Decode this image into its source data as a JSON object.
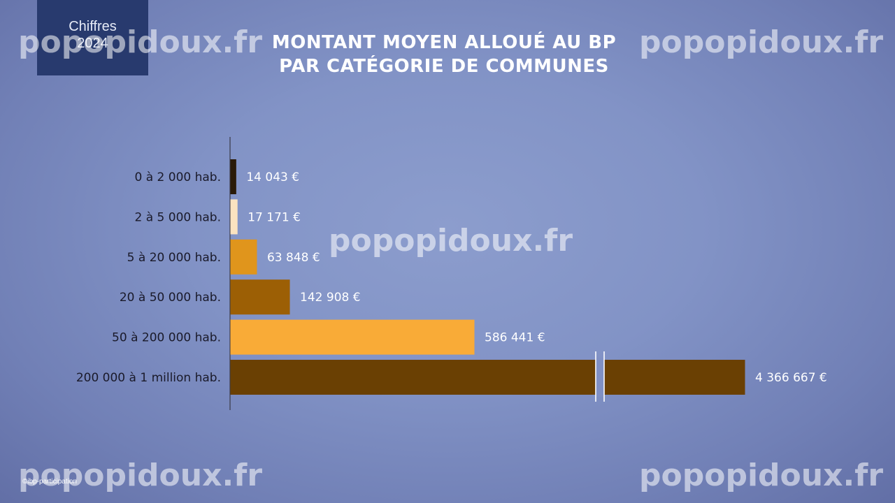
{
  "badge": {
    "line1": "Chiffres",
    "line2": "2024"
  },
  "title": {
    "line1": "MONTANT MOYEN ALLOUÉ AU BP",
    "line2": "PAR CATÉGORIE DE COMMUNES"
  },
  "watermark": "popopidoux.fr",
  "copyright": "©ibp-participation",
  "chart_data": {
    "type": "bar",
    "orientation": "horizontal",
    "title": "MONTANT MOYEN ALLOUÉ AU BP PAR CATÉGORIE DE COMMUNES",
    "categories": [
      "0 à 2 000 hab.",
      "2 à 5 000 hab.",
      "5 à 20 000 hab.",
      "20 à 50 000 hab.",
      "50 à 200 000 hab.",
      "200 000 à 1 million hab."
    ],
    "values": [
      14043,
      17171,
      63848,
      142908,
      586441,
      4366667
    ],
    "value_labels": [
      "14 043 €",
      "17 171 €",
      "63 848 €",
      "142 908 €",
      "586 441 €",
      "4 366 667 €"
    ],
    "colors": [
      "#2a1a08",
      "#fbe3c0",
      "#e0951c",
      "#9c5f05",
      "#f9ab37",
      "#6a4003"
    ],
    "axis_break_on_last_bar": true,
    "grid": false,
    "legend": "none"
  }
}
